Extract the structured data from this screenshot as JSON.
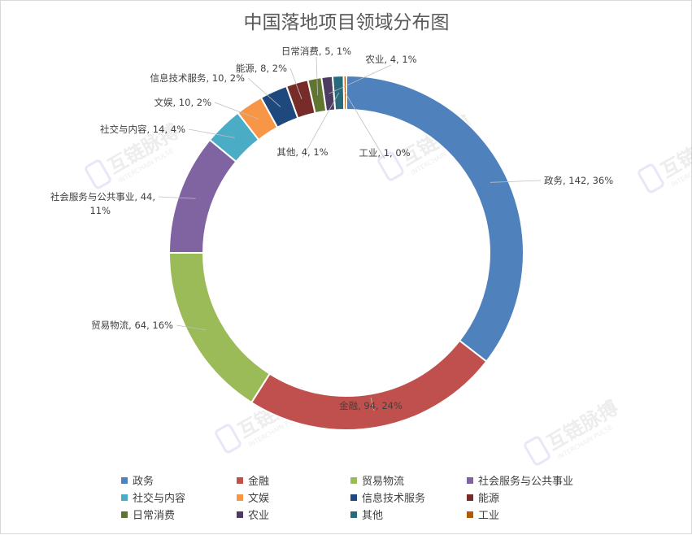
{
  "chart_data": {
    "type": "pie",
    "subtype": "doughnut",
    "title": "中国落地项目领域分布图",
    "legend_position": "bottom",
    "slices": [
      {
        "name": "政务",
        "value": 142,
        "percent": "36%",
        "color": "#4F81BD"
      },
      {
        "name": "金融",
        "value": 94,
        "percent": "24%",
        "color": "#C0504D"
      },
      {
        "name": "贸易物流",
        "value": 64,
        "percent": "16%",
        "color": "#9BBB59"
      },
      {
        "name": "社会服务与公共事业",
        "value": 44,
        "percent": "11%",
        "color": "#8064A2"
      },
      {
        "name": "社交与内容",
        "value": 14,
        "percent": "4%",
        "color": "#4BACC6"
      },
      {
        "name": "文娱",
        "value": 10,
        "percent": "2%",
        "color": "#F79646"
      },
      {
        "name": "信息技术服务",
        "value": 10,
        "percent": "2%",
        "color": "#1F497D"
      },
      {
        "name": "能源",
        "value": 8,
        "percent": "2%",
        "color": "#772C2A"
      },
      {
        "name": "日常消费",
        "value": 5,
        "percent": "1%",
        "color": "#5F7530"
      },
      {
        "name": "农业",
        "value": 4,
        "percent": "1%",
        "color": "#4D3B62"
      },
      {
        "name": "其他",
        "value": 4,
        "percent": "1%",
        "color": "#276A7C"
      },
      {
        "name": "工业",
        "value": 1,
        "percent": "0%",
        "color": "#B65708"
      }
    ]
  },
  "watermark": {
    "text": "互链脉搏",
    "subtext": "INTERCHAIN PULSE"
  }
}
